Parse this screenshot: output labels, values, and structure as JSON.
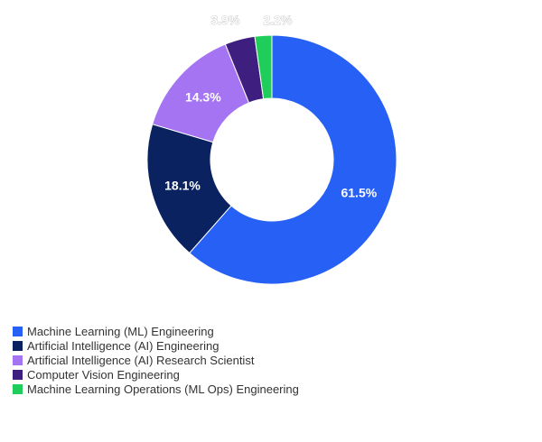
{
  "chart_data": {
    "type": "pie",
    "variant": "donut",
    "title": "",
    "categories": [
      "Machine Learning (ML) Engineering",
      "Artificial Intelligence (AI) Engineering",
      "Artificial Intelligence (AI) Research Scientist",
      "Computer Vision Engineering",
      "Machine Learning Operations (ML Ops) Engineering"
    ],
    "values": [
      61.5,
      18.1,
      14.3,
      3.9,
      2.2
    ],
    "labels": [
      "61.5%",
      "18.1%",
      "14.3%",
      "3.9%",
      "2.2%"
    ],
    "colors": [
      "#2660f5",
      "#0a2260",
      "#a574f2",
      "#3e1f80",
      "#1fce5a"
    ],
    "legend_placement": "bottom-left"
  }
}
